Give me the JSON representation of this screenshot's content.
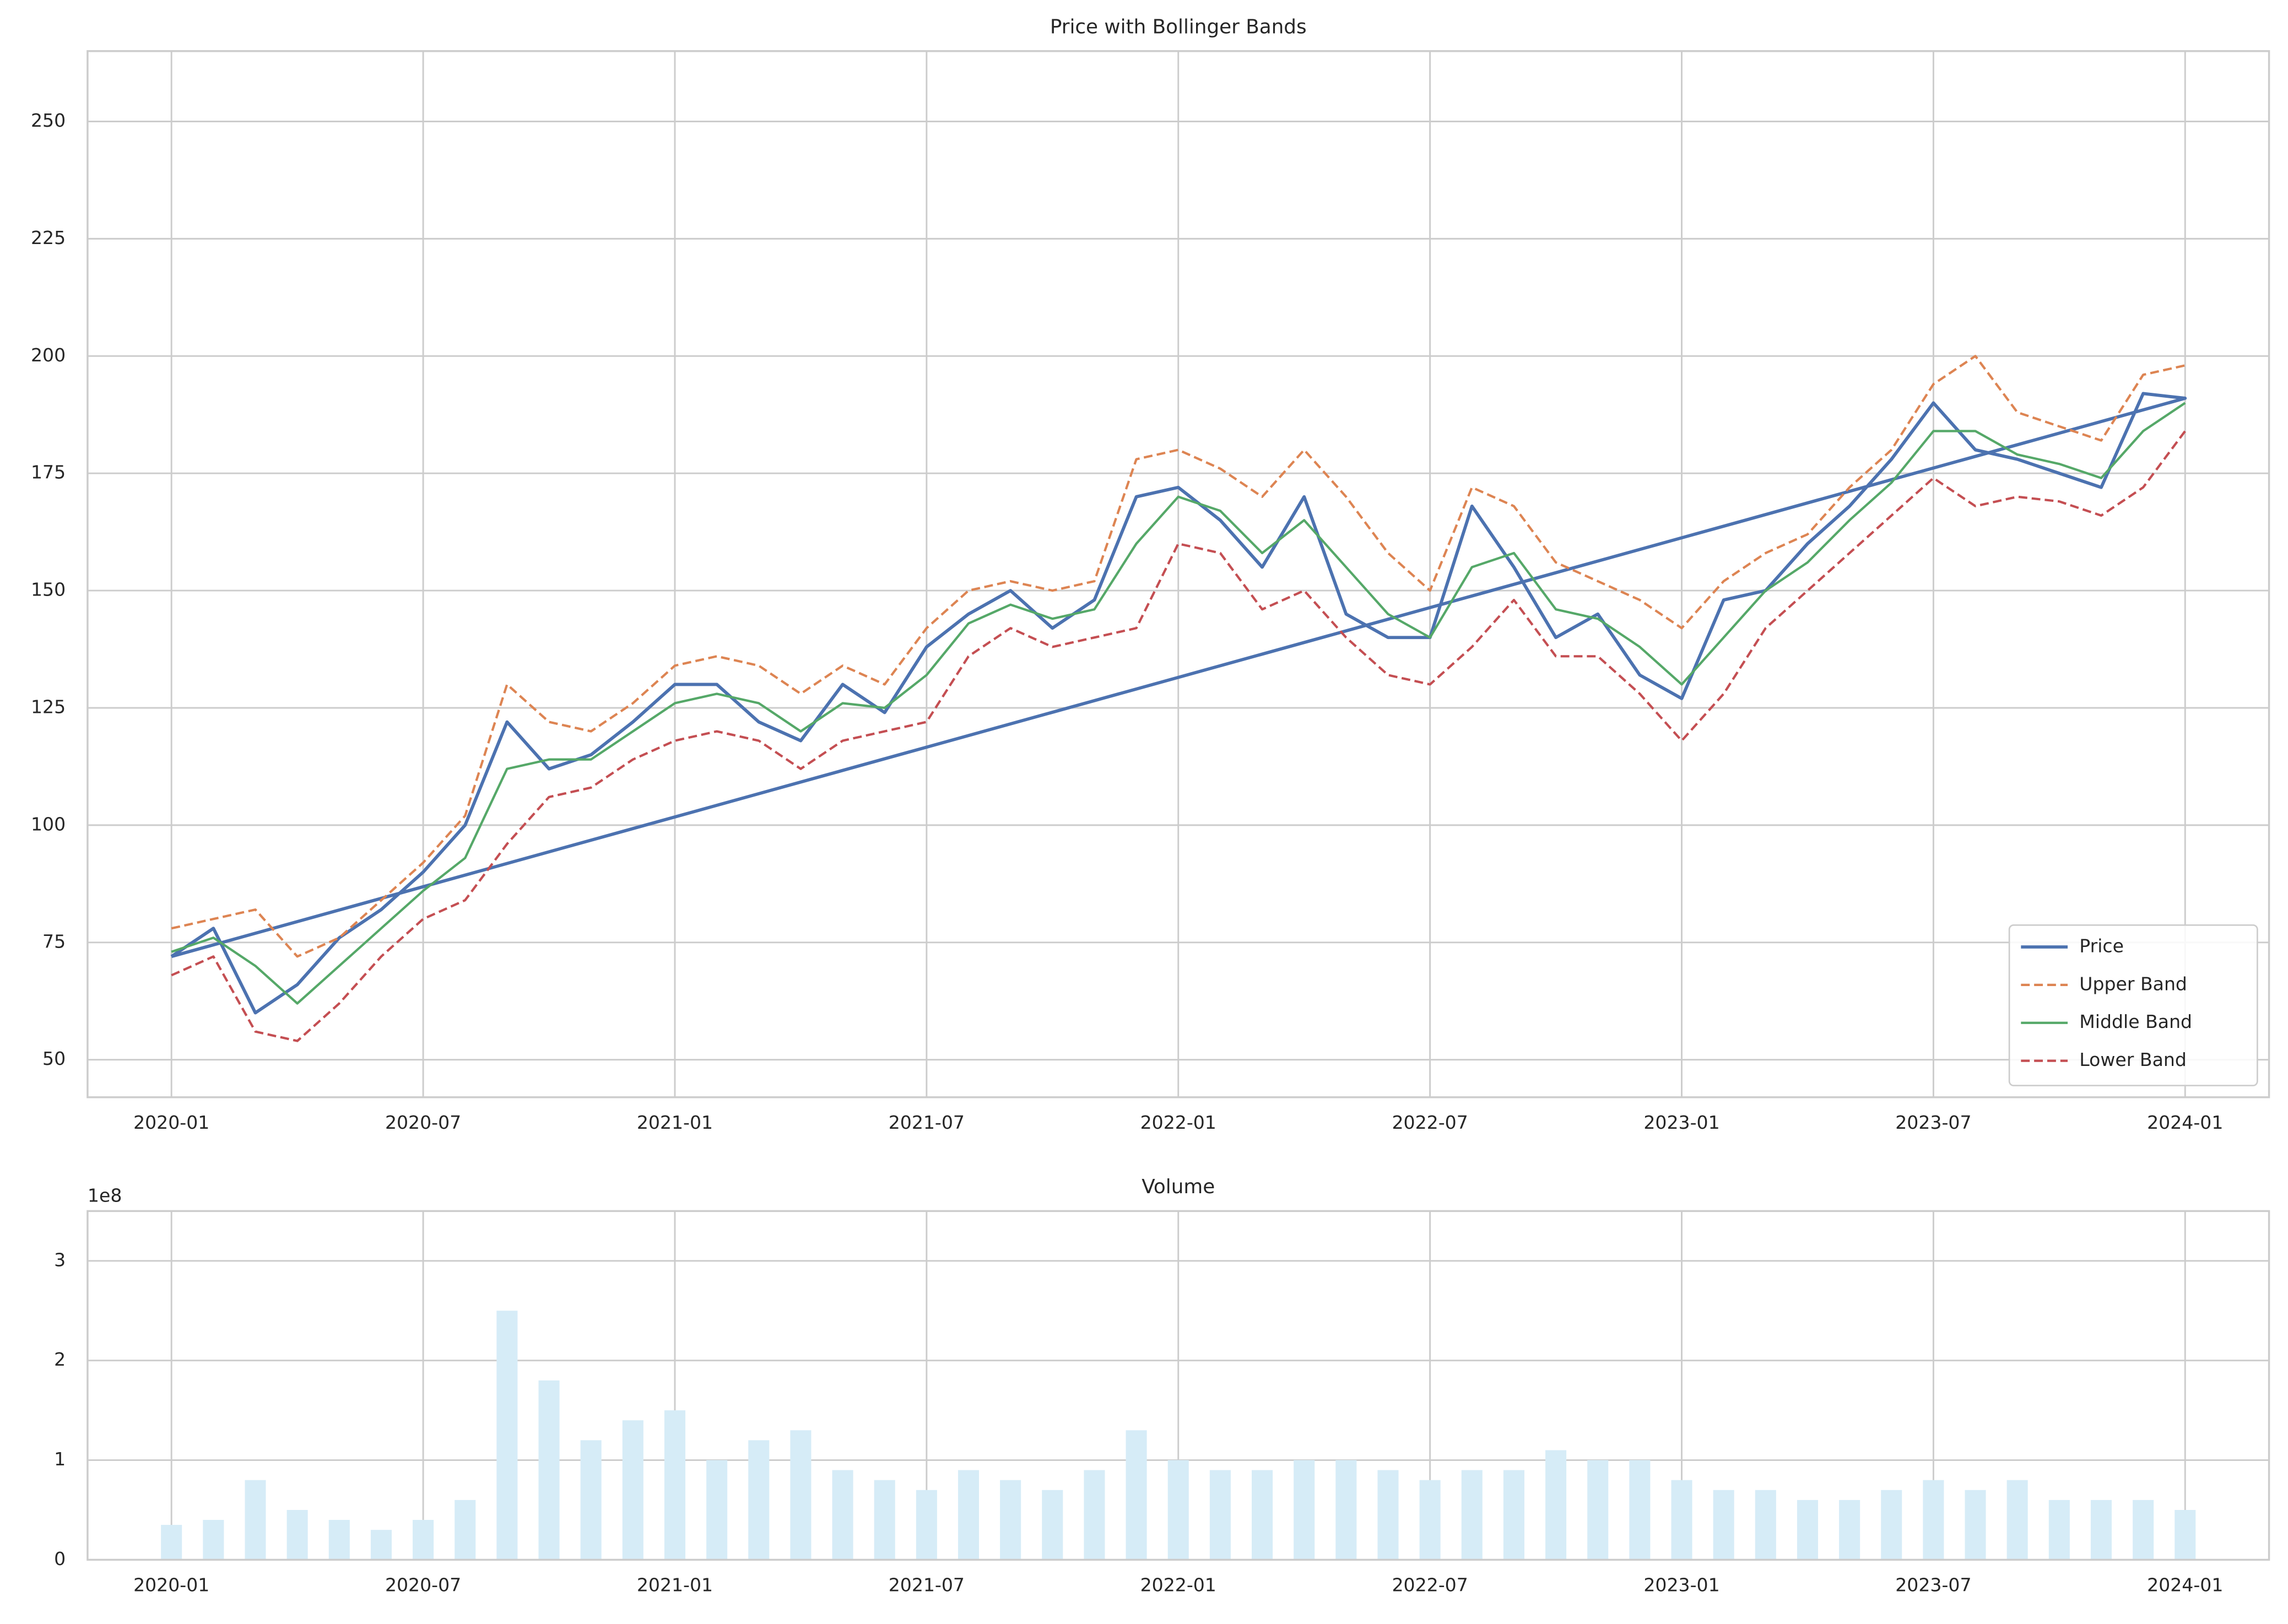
{
  "chart_data": [
    {
      "type": "line",
      "title": "Price with Bollinger Bands",
      "x": [
        "2020-01",
        "2020-02",
        "2020-03",
        "2020-04",
        "2020-05",
        "2020-06",
        "2020-07",
        "2020-08",
        "2020-09",
        "2020-10",
        "2020-11",
        "2020-12",
        "2021-01",
        "2021-02",
        "2021-03",
        "2021-04",
        "2021-05",
        "2021-06",
        "2021-07",
        "2021-08",
        "2021-09",
        "2021-10",
        "2021-11",
        "2021-12",
        "2022-01",
        "2022-02",
        "2022-03",
        "2022-04",
        "2022-05",
        "2022-06",
        "2022-07",
        "2022-08",
        "2022-09",
        "2022-10",
        "2022-11",
        "2022-12",
        "2023-01",
        "2023-02",
        "2023-03",
        "2023-04",
        "2023-05",
        "2023-06",
        "2023-07",
        "2023-08",
        "2023-09",
        "2023-10",
        "2023-11",
        "2023-12",
        "2024-01",
        "2020-01"
      ],
      "series": [
        {
          "name": "Price",
          "color": "#4c72b0",
          "dashed": false,
          "width": 2.2,
          "values": [
            72,
            78,
            60,
            66,
            76,
            82,
            90,
            100,
            122,
            112,
            115,
            122,
            130,
            130,
            122,
            118,
            130,
            124,
            138,
            145,
            150,
            142,
            148,
            170,
            172,
            165,
            155,
            170,
            145,
            140,
            140,
            168,
            155,
            140,
            145,
            132,
            127,
            148,
            150,
            160,
            168,
            178,
            190,
            180,
            178,
            175,
            172,
            192,
            191,
            72
          ]
        },
        {
          "name": "Upper Band",
          "color": "#dd8452",
          "dashed": true,
          "width": 1.6,
          "values": [
            78,
            80,
            82,
            72,
            76,
            84,
            92,
            102,
            130,
            122,
            120,
            126,
            134,
            136,
            134,
            128,
            134,
            130,
            142,
            150,
            152,
            150,
            152,
            178,
            180,
            176,
            170,
            180,
            170,
            158,
            150,
            172,
            168,
            156,
            152,
            148,
            142,
            152,
            158,
            162,
            172,
            180,
            194,
            200,
            188,
            185,
            182,
            196,
            198,
            null
          ]
        },
        {
          "name": "Middle Band",
          "color": "#55a868",
          "dashed": false,
          "width": 1.6,
          "values": [
            73,
            76,
            70,
            62,
            70,
            78,
            86,
            93,
            112,
            114,
            114,
            120,
            126,
            128,
            126,
            120,
            126,
            125,
            132,
            143,
            147,
            144,
            146,
            160,
            170,
            167,
            158,
            165,
            155,
            145,
            140,
            155,
            158,
            146,
            144,
            138,
            130,
            140,
            150,
            156,
            165,
            173,
            184,
            184,
            179,
            177,
            174,
            184,
            190,
            null
          ]
        },
        {
          "name": "Lower Band",
          "color": "#c44e52",
          "dashed": true,
          "width": 1.6,
          "values": [
            68,
            72,
            56,
            54,
            62,
            72,
            80,
            84,
            96,
            106,
            108,
            114,
            118,
            120,
            118,
            112,
            118,
            120,
            122,
            136,
            142,
            138,
            140,
            142,
            160,
            158,
            146,
            150,
            140,
            132,
            130,
            138,
            148,
            136,
            136,
            128,
            118,
            128,
            142,
            150,
            158,
            166,
            174,
            168,
            170,
            169,
            166,
            172,
            184,
            null
          ]
        }
      ],
      "xlim": [
        "2019-11",
        "2024-03"
      ],
      "xticks": [
        "2020-01",
        "2020-07",
        "2021-01",
        "2021-07",
        "2022-01",
        "2022-07",
        "2023-01",
        "2023-07",
        "2024-01"
      ],
      "ylim": [
        42,
        265
      ],
      "yticks": [
        50,
        75,
        100,
        125,
        150,
        175,
        200,
        225,
        250
      ],
      "grid": true,
      "legend": "lower right"
    },
    {
      "type": "bar",
      "title": "Volume",
      "y_offset_label": "1e8",
      "color": "#d6ecf7",
      "x": [
        "2020-01",
        "2020-02",
        "2020-03",
        "2020-04",
        "2020-05",
        "2020-06",
        "2020-07",
        "2020-08",
        "2020-09",
        "2020-10",
        "2020-11",
        "2020-12",
        "2021-01",
        "2021-02",
        "2021-03",
        "2021-04",
        "2021-05",
        "2021-06",
        "2021-07",
        "2021-08",
        "2021-09",
        "2021-10",
        "2021-11",
        "2021-12",
        "2022-01",
        "2022-02",
        "2022-03",
        "2022-04",
        "2022-05",
        "2022-06",
        "2022-07",
        "2022-08",
        "2022-09",
        "2022-10",
        "2022-11",
        "2022-12",
        "2023-01",
        "2023-02",
        "2023-03",
        "2023-04",
        "2023-05",
        "2023-06",
        "2023-07",
        "2023-08",
        "2023-09",
        "2023-10",
        "2023-11",
        "2023-12",
        "2024-01"
      ],
      "values": [
        0.35,
        0.4,
        0.8,
        0.5,
        0.4,
        0.3,
        0.4,
        0.6,
        2.5,
        1.8,
        1.2,
        1.4,
        1.5,
        1.0,
        1.2,
        1.3,
        0.9,
        0.8,
        0.7,
        0.9,
        0.8,
        0.7,
        0.9,
        1.3,
        1.0,
        0.9,
        0.9,
        1.0,
        1.0,
        0.9,
        0.8,
        0.9,
        0.9,
        1.1,
        1.0,
        1.0,
        0.8,
        0.7,
        0.7,
        0.6,
        0.6,
        0.7,
        0.8,
        0.7,
        0.8,
        0.6,
        0.6,
        0.6,
        0.5
      ],
      "xlim": [
        "2019-11",
        "2024-03"
      ],
      "xticks": [
        "2020-01",
        "2020-07",
        "2021-01",
        "2021-07",
        "2022-01",
        "2022-07",
        "2023-01",
        "2023-07",
        "2024-01"
      ],
      "ylim": [
        0,
        3.5
      ],
      "yticks": [
        0,
        1,
        2,
        3
      ],
      "grid": true
    }
  ]
}
